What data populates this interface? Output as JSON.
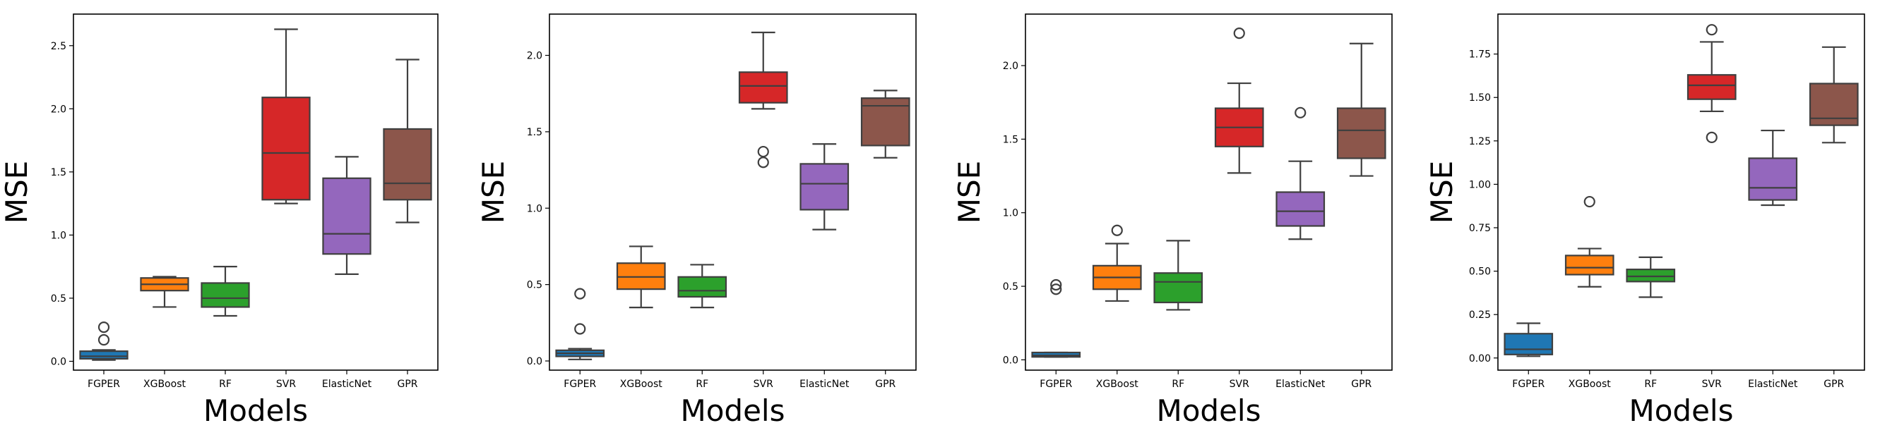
{
  "figure": {
    "panel_count": 4
  },
  "chart_data": [
    {
      "type": "box",
      "xlabel": "Models",
      "ylabel": "MSE",
      "categories": [
        "FGPER",
        "XGBoost",
        "RF",
        "SVR",
        "ElasticNet",
        "GPR"
      ],
      "ylim": [
        -0.07,
        2.75
      ],
      "yticks": [
        0.0,
        0.5,
        1.0,
        1.5,
        2.0,
        2.5
      ],
      "ytick_labels": [
        "0.0",
        "0.5",
        "1.0",
        "1.5",
        "2.0",
        "2.5"
      ],
      "boxes": [
        {
          "name": "FGPER",
          "color": "#1f77b4",
          "whislo": 0.01,
          "q1": 0.02,
          "med": 0.04,
          "q3": 0.08,
          "whishi": 0.09,
          "fliers": [
            0.17,
            0.27
          ]
        },
        {
          "name": "XGBoost",
          "color": "#ff7f0e",
          "whislo": 0.43,
          "q1": 0.56,
          "med": 0.61,
          "q3": 0.66,
          "whishi": 0.67,
          "fliers": []
        },
        {
          "name": "RF",
          "color": "#2ca02c",
          "whislo": 0.36,
          "q1": 0.43,
          "med": 0.5,
          "q3": 0.62,
          "whishi": 0.75,
          "fliers": []
        },
        {
          "name": "SVR",
          "color": "#d62728",
          "whislo": 1.25,
          "q1": 1.28,
          "med": 1.65,
          "q3": 2.09,
          "whishi": 2.63,
          "fliers": []
        },
        {
          "name": "ElasticNet",
          "color": "#9467bd",
          "whislo": 0.69,
          "q1": 0.85,
          "med": 1.01,
          "q3": 1.45,
          "whishi": 1.62,
          "fliers": []
        },
        {
          "name": "GPR",
          "color": "#8c564b",
          "whislo": 1.1,
          "q1": 1.28,
          "med": 1.41,
          "q3": 1.84,
          "whishi": 2.39,
          "fliers": []
        }
      ]
    },
    {
      "type": "box",
      "xlabel": "Models",
      "ylabel": "MSE",
      "categories": [
        "FGPER",
        "XGBoost",
        "RF",
        "SVR",
        "ElasticNet",
        "GPR"
      ],
      "ylim": [
        -0.06,
        2.27
      ],
      "yticks": [
        0.0,
        0.5,
        1.0,
        1.5,
        2.0
      ],
      "ytick_labels": [
        "0.0",
        "0.5",
        "1.0",
        "1.5",
        "2.0"
      ],
      "boxes": [
        {
          "name": "FGPER",
          "color": "#1f77b4",
          "whislo": 0.01,
          "q1": 0.03,
          "med": 0.05,
          "q3": 0.07,
          "whishi": 0.08,
          "fliers": [
            0.21,
            0.44
          ]
        },
        {
          "name": "XGBoost",
          "color": "#ff7f0e",
          "whislo": 0.35,
          "q1": 0.47,
          "med": 0.55,
          "q3": 0.64,
          "whishi": 0.75,
          "fliers": []
        },
        {
          "name": "RF",
          "color": "#2ca02c",
          "whislo": 0.35,
          "q1": 0.42,
          "med": 0.46,
          "q3": 0.55,
          "whishi": 0.63,
          "fliers": []
        },
        {
          "name": "SVR",
          "color": "#d62728",
          "whislo": 1.65,
          "q1": 1.69,
          "med": 1.8,
          "q3": 1.89,
          "whishi": 2.15,
          "fliers": [
            1.3,
            1.37
          ]
        },
        {
          "name": "ElasticNet",
          "color": "#9467bd",
          "whislo": 0.86,
          "q1": 0.99,
          "med": 1.16,
          "q3": 1.29,
          "whishi": 1.42,
          "fliers": []
        },
        {
          "name": "GPR",
          "color": "#8c564b",
          "whislo": 1.33,
          "q1": 1.41,
          "med": 1.67,
          "q3": 1.72,
          "whishi": 1.77,
          "fliers": []
        }
      ]
    },
    {
      "type": "box",
      "xlabel": "Models",
      "ylabel": "MSE",
      "categories": [
        "FGPER",
        "XGBoost",
        "RF",
        "SVR",
        "ElasticNet",
        "GPR"
      ],
      "ylim": [
        -0.07,
        2.35
      ],
      "yticks": [
        0.0,
        0.5,
        1.0,
        1.5,
        2.0
      ],
      "ytick_labels": [
        "0.0",
        "0.5",
        "1.0",
        "1.5",
        "2.0"
      ],
      "boxes": [
        {
          "name": "FGPER",
          "color": "#1f77b4",
          "whislo": 0.02,
          "q1": 0.02,
          "med": 0.03,
          "q3": 0.05,
          "whishi": 0.05,
          "fliers": [
            0.48,
            0.51
          ]
        },
        {
          "name": "XGBoost",
          "color": "#ff7f0e",
          "whislo": 0.4,
          "q1": 0.48,
          "med": 0.56,
          "q3": 0.64,
          "whishi": 0.79,
          "fliers": [
            0.88
          ]
        },
        {
          "name": "RF",
          "color": "#2ca02c",
          "whislo": 0.34,
          "q1": 0.39,
          "med": 0.53,
          "q3": 0.59,
          "whishi": 0.81,
          "fliers": []
        },
        {
          "name": "SVR",
          "color": "#d62728",
          "whislo": 1.27,
          "q1": 1.45,
          "med": 1.58,
          "q3": 1.71,
          "whishi": 1.88,
          "fliers": [
            2.22
          ]
        },
        {
          "name": "ElasticNet",
          "color": "#9467bd",
          "whislo": 0.82,
          "q1": 0.91,
          "med": 1.01,
          "q3": 1.14,
          "whishi": 1.35,
          "fliers": [
            1.68
          ]
        },
        {
          "name": "GPR",
          "color": "#8c564b",
          "whislo": 1.25,
          "q1": 1.37,
          "med": 1.56,
          "q3": 1.71,
          "whishi": 2.15,
          "fliers": []
        }
      ]
    },
    {
      "type": "box",
      "xlabel": "Models",
      "ylabel": "MSE",
      "categories": [
        "FGPER",
        "XGBoost",
        "RF",
        "SVR",
        "ElasticNet",
        "GPR"
      ],
      "ylim": [
        -0.07,
        1.98
      ],
      "yticks": [
        0.0,
        0.25,
        0.5,
        0.75,
        1.0,
        1.25,
        1.5,
        1.75
      ],
      "ytick_labels": [
        "0.00",
        "0.25",
        "0.50",
        "0.75",
        "1.00",
        "1.25",
        "1.50",
        "1.75"
      ],
      "boxes": [
        {
          "name": "FGPER",
          "color": "#1f77b4",
          "whislo": 0.01,
          "q1": 0.02,
          "med": 0.05,
          "q3": 0.14,
          "whishi": 0.2,
          "fliers": []
        },
        {
          "name": "XGBoost",
          "color": "#ff7f0e",
          "whislo": 0.41,
          "q1": 0.48,
          "med": 0.52,
          "q3": 0.59,
          "whishi": 0.63,
          "fliers": [
            0.9
          ]
        },
        {
          "name": "RF",
          "color": "#2ca02c",
          "whislo": 0.35,
          "q1": 0.44,
          "med": 0.47,
          "q3": 0.51,
          "whishi": 0.58,
          "fliers": []
        },
        {
          "name": "SVR",
          "color": "#d62728",
          "whislo": 1.42,
          "q1": 1.49,
          "med": 1.57,
          "q3": 1.63,
          "whishi": 1.82,
          "fliers": [
            1.27,
            1.89
          ]
        },
        {
          "name": "ElasticNet",
          "color": "#9467bd",
          "whislo": 0.88,
          "q1": 0.91,
          "med": 0.98,
          "q3": 1.15,
          "whishi": 1.31,
          "fliers": []
        },
        {
          "name": "GPR",
          "color": "#8c564b",
          "whislo": 1.24,
          "q1": 1.34,
          "med": 1.38,
          "q3": 1.58,
          "whishi": 1.79,
          "fliers": []
        }
      ]
    }
  ]
}
